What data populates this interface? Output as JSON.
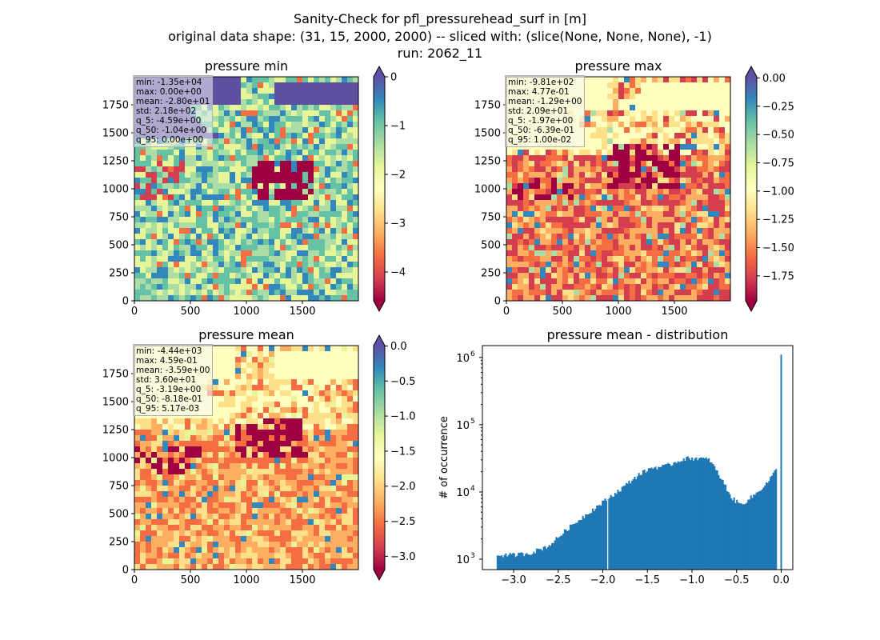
{
  "figure": {
    "title_lines": [
      "Sanity-Check for pfl_pressurehead_surf in [m]",
      "original data shape: (31, 15, 2000, 2000) -- sliced with: (slice(None, None, None), -1)",
      "run: 2062_11"
    ]
  },
  "chart_data": [
    {
      "type": "heatmap",
      "title": "pressure min",
      "x_ticks": [
        "0",
        "500",
        "1000",
        "1500"
      ],
      "y_ticks": [
        "0",
        "250",
        "500",
        "750",
        "1000",
        "1250",
        "1500",
        "1750"
      ],
      "colormap": "Spectral",
      "colorbar_ticks": [
        "0",
        "−1",
        "−2",
        "−3",
        "−4"
      ],
      "colorbar_range": [
        -4.59,
        0
      ],
      "colorbar_extend": "both",
      "stats": [
        "min: -1.35e+04",
        "max: 0.00e+00",
        "mean: -2.80e+01",
        "std: 2.18e+02",
        "q_5: -4.59e+00",
        "q_50: -1.04e+00",
        "q_95: 0.00e+00"
      ]
    },
    {
      "type": "heatmap",
      "title": "pressure max",
      "x_ticks": [
        "0",
        "500",
        "1000",
        "1500"
      ],
      "y_ticks": [
        "0",
        "250",
        "500",
        "750",
        "1000",
        "1250",
        "1500",
        "1750"
      ],
      "colormap": "Spectral",
      "colorbar_ticks": [
        "0.00",
        "−0.25",
        "−0.50",
        "−0.75",
        "−1.00",
        "−1.25",
        "−1.50",
        "−1.75"
      ],
      "colorbar_range": [
        -1.97,
        0.01
      ],
      "colorbar_extend": "both",
      "stats": [
        "min: -9.81e+02",
        "max: 4.77e-01",
        "mean: -1.29e+00",
        "std: 2.09e+01",
        "q_5: -1.97e+00",
        "q_50: -6.39e-01",
        "q_95: 1.00e-02"
      ]
    },
    {
      "type": "heatmap",
      "title": "pressure mean",
      "x_ticks": [
        "0",
        "500",
        "1000",
        "1500"
      ],
      "y_ticks": [
        "0",
        "250",
        "500",
        "750",
        "1000",
        "1250",
        "1500",
        "1750"
      ],
      "colormap": "Spectral",
      "colorbar_ticks": [
        "0.0",
        "−0.5",
        "−1.0",
        "−1.5",
        "−2.0",
        "−2.5",
        "−3.0"
      ],
      "colorbar_range": [
        -3.19,
        0.005
      ],
      "colorbar_extend": "both",
      "stats": [
        "min: -4.44e+03",
        "max: 4.59e-01",
        "mean: -3.59e+00",
        "std: 3.60e+01",
        "q_5: -3.19e+00",
        "q_50: -8.18e-01",
        "q_95: 5.17e-03"
      ]
    },
    {
      "type": "bar",
      "title": "pressure mean - distribution",
      "ylabel": "# of occurrence",
      "yscale": "log",
      "ylim": [
        700,
        1500000
      ],
      "xlim": [
        -3.35,
        0.13
      ],
      "x_ticks": [
        "−3.0",
        "−2.5",
        "−2.0",
        "−1.5",
        "−1.0",
        "−0.5",
        "0.0"
      ],
      "x_tick_values": [
        -3.0,
        -2.5,
        -2.0,
        -1.5,
        -1.0,
        -0.5,
        0.0
      ],
      "y_ticks": [
        "10",
        "10",
        "10",
        "10"
      ],
      "y_tick_exponents": [
        "3",
        "4",
        "5",
        "6"
      ],
      "y_tick_values": [
        1000,
        10000,
        100000,
        1000000
      ],
      "bar_color": "#1f77b4",
      "bins": [
        {
          "x": -3.19,
          "y": 1150
        },
        {
          "x": -3.0,
          "y": 1150
        },
        {
          "x": -2.8,
          "y": 1250
        },
        {
          "x": -2.6,
          "y": 1600
        },
        {
          "x": -2.4,
          "y": 2800
        },
        {
          "x": -2.2,
          "y": 4500
        },
        {
          "x": -2.0,
          "y": 7000
        },
        {
          "x": -1.8,
          "y": 11000
        },
        {
          "x": -1.6,
          "y": 18000
        },
        {
          "x": -1.45,
          "y": 23000
        },
        {
          "x": -1.3,
          "y": 24000
        },
        {
          "x": -1.1,
          "y": 31000
        },
        {
          "x": -0.95,
          "y": 32000
        },
        {
          "x": -0.8,
          "y": 30000
        },
        {
          "x": -0.65,
          "y": 14000
        },
        {
          "x": -0.55,
          "y": 8000
        },
        {
          "x": -0.45,
          "y": 6500
        },
        {
          "x": -0.3,
          "y": 9000
        },
        {
          "x": -0.15,
          "y": 14000
        },
        {
          "x": -0.05,
          "y": 22000
        },
        {
          "x": 0.0,
          "y": 1100000
        }
      ]
    }
  ]
}
